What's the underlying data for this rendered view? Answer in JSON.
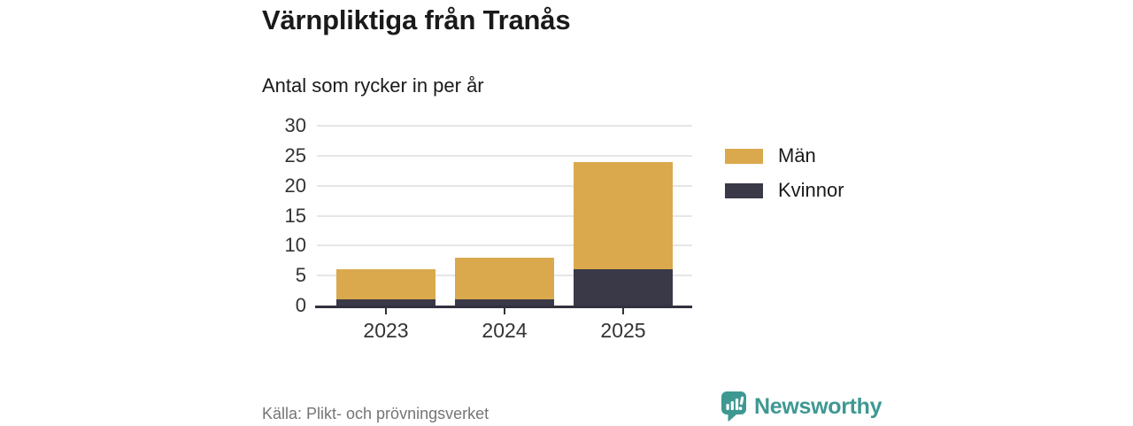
{
  "header": {
    "title": "Värnpliktiga från Tranås",
    "subtitle": "Antal som rycker in per år"
  },
  "chart_data": {
    "type": "bar",
    "stacked": true,
    "title": "Värnpliktiga från Tranås",
    "subtitle": "Antal som rycker in per år",
    "categories": [
      "2023",
      "2024",
      "2025"
    ],
    "series": [
      {
        "name": "Kvinnor",
        "color": "#3a3948",
        "values": [
          1,
          1,
          6
        ]
      },
      {
        "name": "Män",
        "color": "#daa94d",
        "values": [
          5,
          7,
          18
        ]
      }
    ],
    "totals": [
      6,
      8,
      24
    ],
    "xlabel": "",
    "ylabel": "",
    "ylim": [
      0,
      30
    ],
    "yticks": [
      0,
      5,
      10,
      15,
      20,
      25,
      30
    ],
    "grid": "horizontal",
    "legend_position": "right",
    "legend_order": [
      "Män",
      "Kvinnor"
    ]
  },
  "legend": {
    "items": [
      {
        "label": "Män",
        "color": "#daa94d"
      },
      {
        "label": "Kvinnor",
        "color": "#3a3948"
      }
    ]
  },
  "footer": {
    "source": "Källa: Plikt- och prövningsverket",
    "brand": "Newsworthy"
  },
  "colors": {
    "men": "#daa94d",
    "women": "#3a3948",
    "axis": "#32313f",
    "gridline": "#e6e6e8",
    "brand_teal": "#3e9892",
    "text_dark": "#1a1a1a",
    "text_axis": "#333333",
    "text_source": "#757575"
  },
  "icons": {
    "brand_icon": "newsworthy-speech-bubble-bar-chart-icon"
  }
}
